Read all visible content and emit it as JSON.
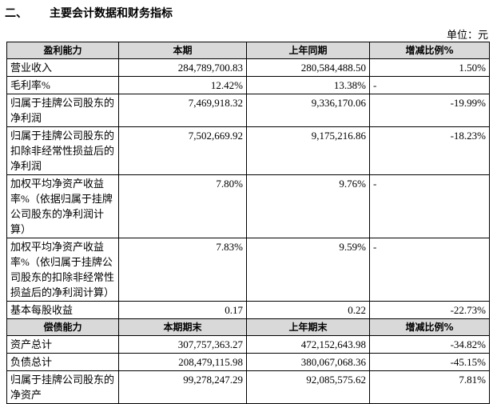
{
  "header": {
    "number": "二、",
    "title": "主要会计数据和财务指标",
    "unit": "单位：元"
  },
  "table": {
    "sections": [
      {
        "columns": [
          "盈利能力",
          "本期",
          "上年同期",
          "增减比例%"
        ],
        "rows": [
          {
            "label": [
              "营业收入"
            ],
            "cells": [
              "284,789,700.83",
              "280,584,488.50",
              "1.50%"
            ]
          },
          {
            "label": [
              "毛利率%"
            ],
            "cells": [
              "12.42%",
              "13.38%",
              "-"
            ]
          },
          {
            "label": [
              "归属于挂牌公司股东的",
              "净利润"
            ],
            "cells": [
              "7,469,918.32",
              "9,336,170.06",
              "-19.99%"
            ]
          },
          {
            "label": [
              "归属于挂牌公司股东的",
              "扣除非经常性损益后的",
              "净利润"
            ],
            "cells": [
              "7,502,669.92",
              "9,175,216.86",
              "-18.23%"
            ]
          },
          {
            "label": [
              "加权平均净资产收益",
              "率%（依据归属于挂牌",
              "公司股东的净利润计",
              "算）"
            ],
            "cells": [
              "7.80%",
              "9.76%",
              "-"
            ]
          },
          {
            "label": [
              "加权平均净资产收益",
              "率%（依归属于挂牌公",
              "司股东的扣除非经常性",
              "损益后的净利润计算）"
            ],
            "cells": [
              "7.83%",
              "9.59%",
              "-"
            ]
          },
          {
            "label": [
              "基本每股收益"
            ],
            "cells": [
              "0.17",
              "0.22",
              "-22.73%"
            ]
          }
        ]
      },
      {
        "columns": [
          "偿债能力",
          "本期期末",
          "上年期末",
          "增减比例%"
        ],
        "rows": [
          {
            "label": [
              "资产总计"
            ],
            "cells": [
              "307,757,363.27",
              "472,152,643.98",
              "-34.82%"
            ]
          },
          {
            "label": [
              "负债总计"
            ],
            "cells": [
              "208,479,115.98",
              "380,067,068.36",
              "-45.15%"
            ]
          },
          {
            "label": [
              "归属于挂牌公司股东的",
              "净资产"
            ],
            "cells": [
              "99,278,247.29",
              "92,085,575.62",
              "7.81%"
            ]
          }
        ]
      }
    ]
  }
}
